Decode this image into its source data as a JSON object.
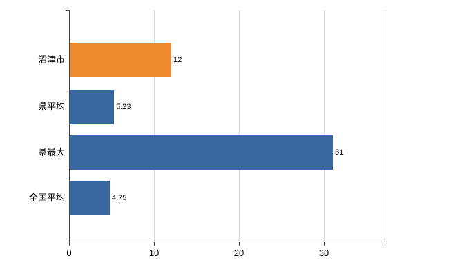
{
  "chart_data": {
    "type": "bar",
    "orientation": "horizontal",
    "title": "",
    "xlabel": "",
    "ylabel": "",
    "categories": [
      "沼津市",
      "県平均",
      "県最大",
      "全国平均"
    ],
    "values": [
      12,
      5.23,
      31,
      4.75
    ],
    "value_labels": [
      "12",
      "5.23",
      "31",
      "4.75"
    ],
    "bar_colors": [
      "#ED8A2E",
      "#38689F",
      "#38689F",
      "#38689F"
    ],
    "x_ticks": [
      0,
      10,
      20,
      30
    ],
    "x_tick_labels": [
      "0",
      "10",
      "20",
      "30"
    ],
    "xlim": [
      0,
      37.2
    ],
    "grid": true,
    "legend": false
  },
  "colors": {
    "axis": "#404040",
    "gridline": "#d9d9d9",
    "background": "#ffffff",
    "orange_series": "#ED8A2E",
    "blue_series": "#38689F"
  }
}
